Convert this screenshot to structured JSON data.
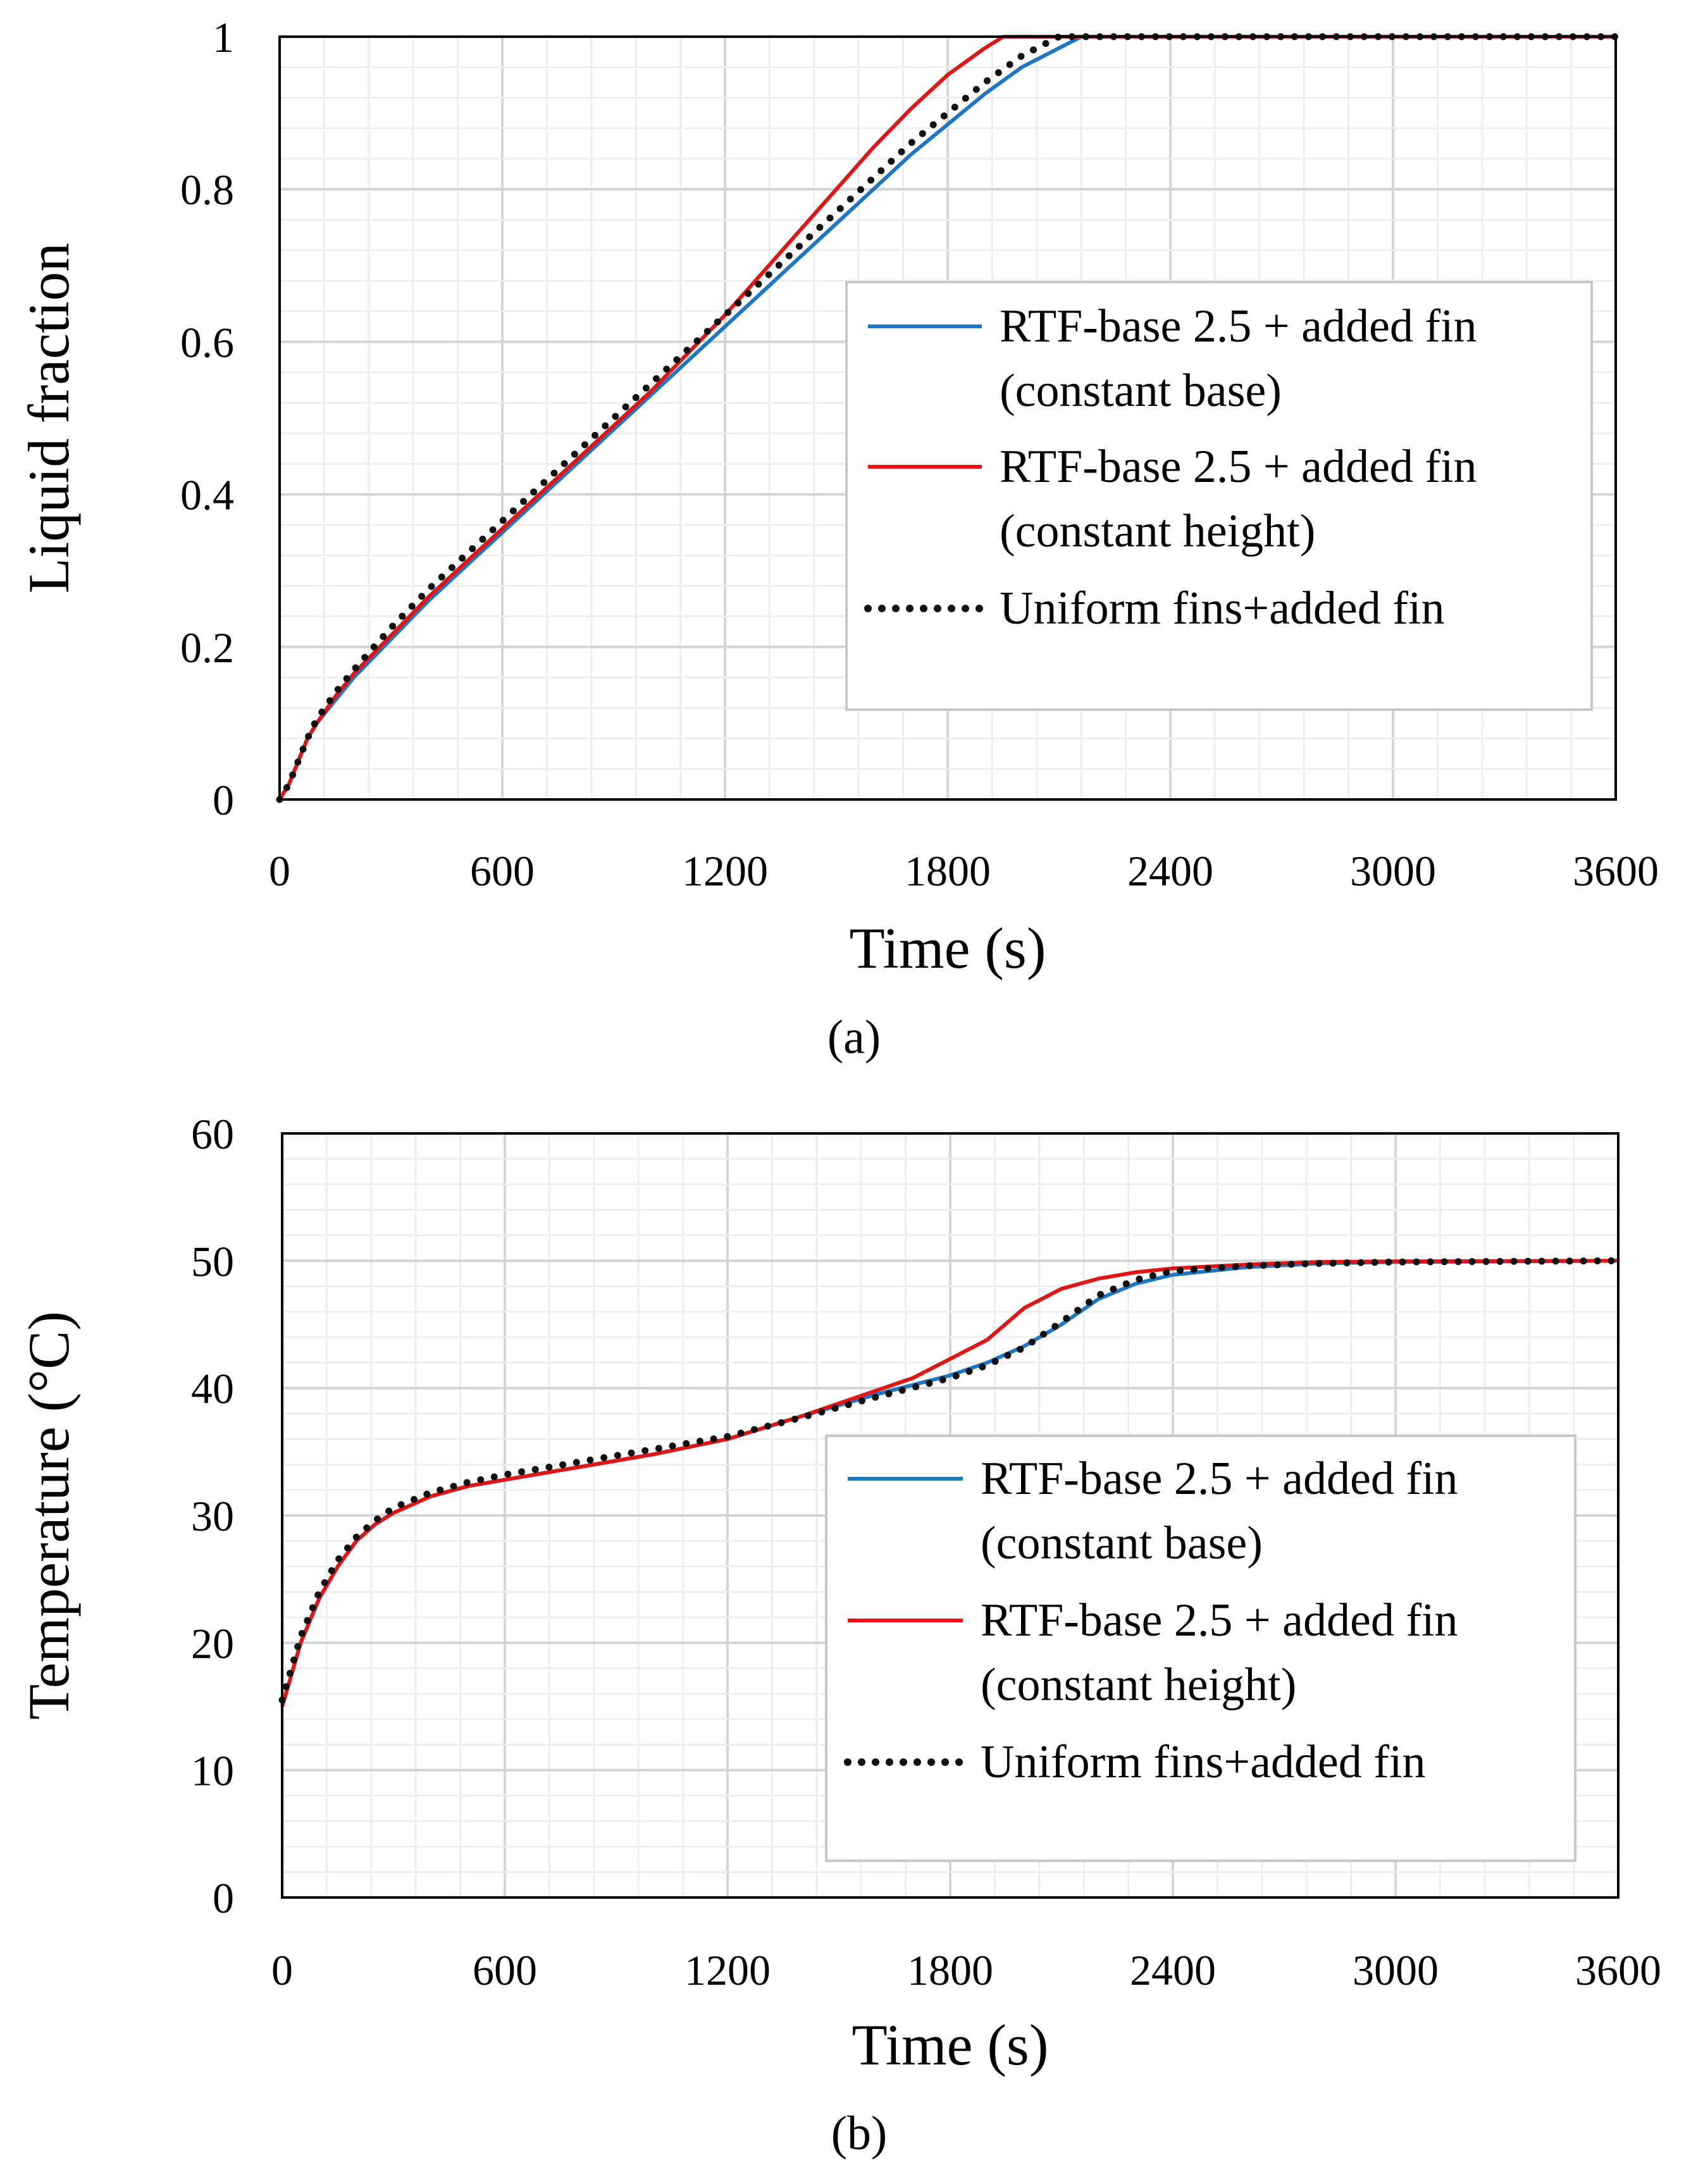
{
  "chart_data": [
    {
      "type": "line",
      "caption": "(a)",
      "xlabel": "Time (s)",
      "ylabel": "Liquid fraction",
      "xlim": [
        0,
        3600
      ],
      "ylim": [
        0,
        1
      ],
      "xticks": [
        0,
        600,
        1200,
        1800,
        2400,
        3000,
        3600
      ],
      "yticks": [
        0,
        0.2,
        0.4,
        0.6,
        0.8,
        1
      ],
      "xtick_labels": [
        "0",
        "600",
        "1200",
        "1800",
        "2400",
        "3000",
        "3600"
      ],
      "ytick_labels": [
        "0",
        "0.2",
        "0.4",
        "0.6",
        "0.8",
        "1"
      ],
      "grid": true,
      "legend_position": "right-middle",
      "series": [
        {
          "name": "RTF-base 2.5 + added fin",
          "name_line2": "(constant base)",
          "color": "#1f77c4",
          "style": "solid",
          "x": [
            0,
            25,
            50,
            75,
            100,
            150,
            200,
            300,
            400,
            500,
            600,
            700,
            800,
            900,
            1000,
            1100,
            1200,
            1300,
            1400,
            1500,
            1600,
            1700,
            1800,
            1900,
            2000,
            2100,
            2160,
            2200,
            2400,
            3000,
            3600
          ],
          "y": [
            0,
            0.02,
            0.05,
            0.08,
            0.1,
            0.13,
            0.16,
            0.21,
            0.26,
            0.305,
            0.35,
            0.395,
            0.44,
            0.485,
            0.53,
            0.575,
            0.62,
            0.665,
            0.71,
            0.755,
            0.8,
            0.845,
            0.885,
            0.925,
            0.96,
            0.985,
            1.0,
            1.0,
            1.0,
            1.0,
            1.0
          ]
        },
        {
          "name": "RTF-base 2.5 + added fin",
          "name_line2": "(constant height)",
          "color": "#e01515",
          "style": "solid",
          "x": [
            0,
            25,
            50,
            75,
            100,
            150,
            200,
            300,
            400,
            500,
            600,
            700,
            800,
            900,
            1000,
            1100,
            1200,
            1300,
            1400,
            1500,
            1600,
            1700,
            1800,
            1900,
            1950,
            2000,
            2400,
            3000,
            3600
          ],
          "y": [
            0,
            0.02,
            0.05,
            0.08,
            0.1,
            0.135,
            0.165,
            0.215,
            0.265,
            0.31,
            0.355,
            0.4,
            0.445,
            0.49,
            0.535,
            0.585,
            0.635,
            0.69,
            0.745,
            0.8,
            0.855,
            0.905,
            0.95,
            0.985,
            1.0,
            1.0,
            1.0,
            1.0,
            1.0
          ]
        },
        {
          "name": "Uniform fins+added fin",
          "name_line2": "",
          "color": "#111111",
          "style": "dotted",
          "x": [
            0,
            25,
            50,
            75,
            100,
            150,
            200,
            300,
            400,
            500,
            600,
            700,
            800,
            900,
            1000,
            1100,
            1200,
            1300,
            1400,
            1500,
            1600,
            1700,
            1800,
            1900,
            2000,
            2100,
            2400,
            3000,
            3600
          ],
          "y": [
            0,
            0.02,
            0.05,
            0.08,
            0.105,
            0.14,
            0.17,
            0.225,
            0.275,
            0.32,
            0.365,
            0.41,
            0.455,
            0.5,
            0.545,
            0.59,
            0.635,
            0.68,
            0.725,
            0.77,
            0.815,
            0.86,
            0.9,
            0.94,
            0.975,
            1.0,
            1.0,
            1.0,
            1.0
          ]
        }
      ]
    },
    {
      "type": "line",
      "caption": "(b)",
      "xlabel": "Time (s)",
      "ylabel": "Temperature (°C)",
      "xlim": [
        0,
        3600
      ],
      "ylim": [
        0,
        60
      ],
      "xticks": [
        0,
        600,
        1200,
        1800,
        2400,
        3000,
        3600
      ],
      "yticks": [
        0,
        10,
        20,
        30,
        40,
        50,
        60
      ],
      "xtick_labels": [
        "0",
        "600",
        "1200",
        "1800",
        "2400",
        "3000",
        "3600"
      ],
      "ytick_labels": [
        "0",
        "10",
        "20",
        "30",
        "40",
        "50",
        "60"
      ],
      "grid": true,
      "legend_position": "right-middle",
      "series": [
        {
          "name": "RTF-base 2.5 + added fin",
          "name_line2": "(constant base)",
          "color": "#1f77c4",
          "style": "solid",
          "x": [
            0,
            25,
            50,
            100,
            150,
            200,
            250,
            300,
            400,
            500,
            600,
            800,
            1000,
            1200,
            1400,
            1600,
            1800,
            1900,
            2000,
            2100,
            2200,
            2300,
            2400,
            2600,
            2800,
            3000,
            3600
          ],
          "y": [
            15,
            17.5,
            20,
            23.5,
            26,
            28,
            29.3,
            30.2,
            31.5,
            32.3,
            32.8,
            33.8,
            34.8,
            36,
            37.8,
            39.5,
            41,
            42,
            43.3,
            45,
            47,
            48.2,
            48.9,
            49.5,
            49.8,
            49.9,
            50
          ]
        },
        {
          "name": "RTF-base 2.5 + added fin",
          "name_line2": "(constant height)",
          "color": "#e01515",
          "style": "solid",
          "x": [
            0,
            25,
            50,
            100,
            150,
            200,
            250,
            300,
            400,
            500,
            600,
            800,
            1000,
            1200,
            1400,
            1600,
            1700,
            1800,
            1900,
            2000,
            2100,
            2200,
            2300,
            2400,
            2600,
            2800,
            3000,
            3600
          ],
          "y": [
            15,
            17.5,
            20,
            23.5,
            26,
            28,
            29.3,
            30.2,
            31.5,
            32.3,
            32.8,
            33.8,
            34.8,
            36,
            37.8,
            39.8,
            40.8,
            42.3,
            43.8,
            46.3,
            47.8,
            48.6,
            49.1,
            49.4,
            49.7,
            49.9,
            49.95,
            50
          ]
        },
        {
          "name": "Uniform fins+added fin",
          "name_line2": "",
          "color": "#111111",
          "style": "dotted",
          "x": [
            0,
            25,
            50,
            100,
            150,
            200,
            250,
            300,
            400,
            500,
            600,
            800,
            1000,
            1200,
            1400,
            1600,
            1800,
            1900,
            2000,
            2100,
            2200,
            2300,
            2400,
            2600,
            2800,
            3000,
            3600
          ],
          "y": [
            15.5,
            18,
            20.5,
            24,
            26.5,
            28.3,
            29.6,
            30.6,
            31.8,
            32.6,
            33.2,
            34.2,
            35.2,
            36.2,
            37.7,
            39.3,
            40.8,
            41.8,
            43.2,
            45.2,
            47.3,
            48.5,
            49.2,
            49.6,
            49.8,
            49.9,
            50
          ]
        }
      ]
    }
  ]
}
